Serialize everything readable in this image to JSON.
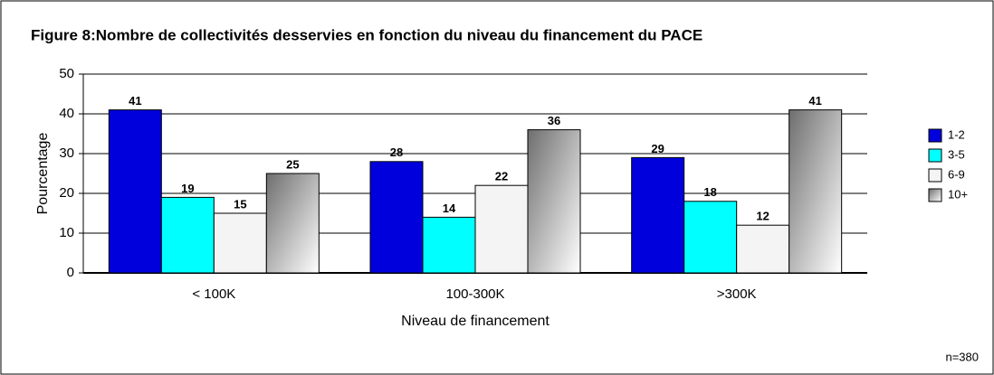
{
  "chart_data": {
    "type": "bar",
    "title": "Figure 8:Nombre de collectivités desservies en fonction du niveau du financement du PACE",
    "x_label": "Niveau de financement",
    "y_label": "Pourcentage",
    "note": "n=380",
    "categories": [
      "< 100K",
      "100-300K",
      ">300K"
    ],
    "series": [
      {
        "name": "1-2",
        "color": "#0000dd",
        "values": [
          41,
          28,
          29
        ]
      },
      {
        "name": "3-5",
        "color": "#00ffff",
        "values": [
          19,
          14,
          18
        ]
      },
      {
        "name": "6-9",
        "color": "#f4f4f4",
        "values": [
          15,
          22,
          12
        ]
      },
      {
        "name": "10+",
        "color": "#6e6e6e",
        "values": [
          25,
          36,
          41
        ]
      }
    ],
    "ylim": [
      0,
      50
    ],
    "yticks": [
      0,
      10,
      20,
      30,
      40,
      50
    ],
    "grid": true,
    "legend": "right"
  }
}
